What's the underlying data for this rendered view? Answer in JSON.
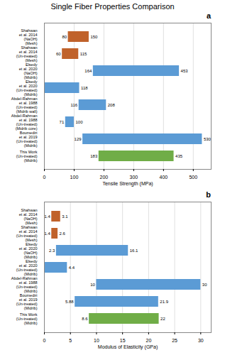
{
  "chart_data": [
    {
      "type": "bar",
      "orientation": "horizontal",
      "title": "Single Fiber Properties Comparison",
      "annotations": [
        "a"
      ],
      "xlabel": "Tensile Strength (MPa)",
      "categories": [
        "Shahwan\net al. 2014\n(NaOH)\n(Mesh)",
        "Shahwan\net al. 2014\n(Un-treated)\n(Mesh)",
        "Elsedy\net al. 2020\n(NaOH)\n(Midrib)",
        "Elsedy\net al. 2020\n(Un-treated)\n(Midrib)",
        "Abdel-Rahman\net al. 1988\n(Un-treated)\n(Midrib wall)",
        "Abdel-Rahman\net al. 1988\n(Un-treated)\n(Midrib core)",
        "Boumediri\net al. 2019\n(Un-treated)\n(Midrib)",
        "This Work\n(Un-treated)\n(Midrib)"
      ],
      "values": [
        [
          80,
          150
        ],
        [
          60,
          115
        ],
        [
          164,
          453
        ],
        [
          0,
          118
        ],
        [
          116,
          208
        ],
        [
          71,
          100
        ],
        [
          129,
          530
        ],
        [
          183,
          435
        ]
      ],
      "colors": [
        "#C0622B",
        "#C0622B",
        "#5B9BD5",
        "#5B9BD5",
        "#5B9BD5",
        "#5B9BD5",
        "#5B9BD5",
        "#70AD47"
      ],
      "xlim": [
        0,
        560
      ],
      "xticks": [
        0,
        100,
        200,
        300,
        400,
        500
      ],
      "grid": true,
      "data_labels": true
    },
    {
      "type": "bar",
      "orientation": "horizontal",
      "annotations": [
        "b"
      ],
      "xlabel": "Modulus of Elasticity (GPa)",
      "categories": [
        "Shahwan\net al. 2014\n(NaOH)\n(Mesh)",
        "Shahwan\net al. 2014\n(Un-treated)\n(Mesh)",
        "Elsedy\net al. 2020\n(NaOH)\n(Midrib)",
        "Elsedy\net al. 2020\n(Un-treated)\n(Midrib)",
        "Abdel-Rahman\net al. 1988\n(Un-treated)\n(Midrib)",
        "Boumediri\net al. 2019\n(Un-treated)\n(Midrib)",
        "This Work\n(Un-treated)\n(Midrib)"
      ],
      "values": [
        [
          1.4,
          3.1
        ],
        [
          1.4,
          2.6
        ],
        [
          2.3,
          16.1
        ],
        [
          0,
          4.4
        ],
        [
          10,
          30
        ],
        [
          5.88,
          21.9
        ],
        [
          8.6,
          22
        ]
      ],
      "colors": [
        "#C0622B",
        "#C0622B",
        "#5B9BD5",
        "#5B9BD5",
        "#5B9BD5",
        "#5B9BD5",
        "#70AD47"
      ],
      "xlim": [
        0,
        32
      ],
      "xticks": [
        0,
        5,
        10,
        15,
        20,
        25,
        30
      ],
      "grid": true,
      "data_labels": true
    }
  ]
}
